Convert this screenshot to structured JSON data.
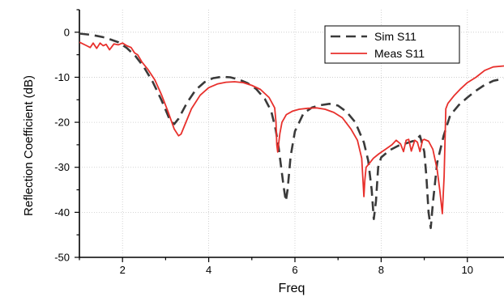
{
  "chart_data": {
    "type": "line",
    "xlabel": "Freq",
    "ylabel": "Reflection Coefficient (dB)",
    "xlim": [
      1,
      10.85
    ],
    "ylim": [
      -50,
      5
    ],
    "xticks": [
      2,
      4,
      6,
      8,
      10
    ],
    "yticks": [
      0,
      -10,
      -20,
      -30,
      -40,
      -50
    ],
    "grid": true,
    "legend_position": "top-right",
    "series": [
      {
        "name": "Sim S11",
        "color": "#3a3a3a",
        "style": "dashed",
        "x": [
          1.0,
          1.3,
          1.6,
          1.9,
          2.1,
          2.3,
          2.5,
          2.7,
          2.9,
          3.1,
          3.2,
          3.3,
          3.5,
          3.7,
          3.9,
          4.1,
          4.3,
          4.5,
          4.7,
          4.9,
          5.1,
          5.3,
          5.45,
          5.55,
          5.62,
          5.68,
          5.74,
          5.79,
          5.83,
          5.9,
          6.0,
          6.2,
          6.4,
          6.6,
          6.8,
          7.0,
          7.2,
          7.4,
          7.6,
          7.7,
          7.78,
          7.83,
          7.88,
          7.93,
          8.0,
          8.2,
          8.4,
          8.6,
          8.8,
          8.9,
          9.0,
          9.05,
          9.1,
          9.15,
          9.2,
          9.3,
          9.45,
          9.6,
          9.8,
          10.0,
          10.2,
          10.4,
          10.6,
          10.85
        ],
        "y": [
          -0.3,
          -0.6,
          -1.2,
          -2.2,
          -3.5,
          -5.3,
          -7.8,
          -11.0,
          -15.0,
          -19.5,
          -20.4,
          -19.2,
          -15.6,
          -12.8,
          -11.1,
          -10.2,
          -9.9,
          -10.0,
          -10.5,
          -11.3,
          -12.6,
          -14.8,
          -17.5,
          -21.5,
          -25.5,
          -30.0,
          -34.5,
          -37.5,
          -35.0,
          -27.5,
          -22.0,
          -18.0,
          -16.7,
          -16.2,
          -15.9,
          -16.3,
          -17.7,
          -20.0,
          -24.5,
          -28.5,
          -35.0,
          -41.5,
          -37.5,
          -30.0,
          -27.8,
          -26.2,
          -25.2,
          -24.6,
          -24.0,
          -23.0,
          -26.5,
          -32.0,
          -40.0,
          -43.5,
          -38.0,
          -29.0,
          -23.0,
          -18.5,
          -16.2,
          -14.5,
          -13.0,
          -11.7,
          -10.8,
          -10.3
        ]
      },
      {
        "name": "Meas S11",
        "color": "#e8302c",
        "style": "solid",
        "x": [
          1.0,
          1.15,
          1.25,
          1.32,
          1.4,
          1.48,
          1.55,
          1.62,
          1.7,
          1.8,
          1.9,
          2.0,
          2.1,
          2.2,
          2.28,
          2.35,
          2.45,
          2.6,
          2.75,
          2.9,
          3.05,
          3.2,
          3.3,
          3.36,
          3.45,
          3.6,
          3.8,
          4.0,
          4.2,
          4.4,
          4.6,
          4.8,
          5.0,
          5.2,
          5.4,
          5.53,
          5.56,
          5.58,
          5.6,
          5.65,
          5.7,
          5.8,
          5.95,
          6.1,
          6.3,
          6.5,
          6.7,
          6.9,
          7.1,
          7.3,
          7.45,
          7.55,
          7.6,
          7.62,
          7.65,
          7.72,
          7.82,
          7.95,
          8.1,
          8.25,
          8.35,
          8.45,
          8.52,
          8.58,
          8.64,
          8.7,
          8.78,
          8.84,
          8.9,
          8.96,
          9.0,
          9.1,
          9.2,
          9.3,
          9.36,
          9.42,
          9.46,
          9.5,
          9.55,
          9.7,
          9.85,
          10.0,
          10.2,
          10.4,
          10.6,
          10.85
        ],
        "y": [
          -2.2,
          -2.9,
          -3.4,
          -2.4,
          -3.6,
          -2.4,
          -3.0,
          -2.7,
          -3.9,
          -2.6,
          -2.8,
          -2.4,
          -3.0,
          -3.4,
          -4.6,
          -5.0,
          -6.6,
          -8.4,
          -10.6,
          -13.8,
          -17.5,
          -21.5,
          -23.0,
          -22.6,
          -20.5,
          -17.0,
          -14.0,
          -12.3,
          -11.5,
          -11.1,
          -11.0,
          -11.2,
          -11.8,
          -12.7,
          -14.5,
          -16.8,
          -20.0,
          -25.0,
          -26.6,
          -22.5,
          -20.0,
          -18.3,
          -17.5,
          -17.1,
          -16.9,
          -16.8,
          -17.1,
          -17.8,
          -19.0,
          -21.5,
          -24.0,
          -28.0,
          -36.5,
          -33.0,
          -30.0,
          -29.2,
          -28.0,
          -27.0,
          -26.0,
          -25.0,
          -24.0,
          -24.8,
          -26.5,
          -24.0,
          -23.8,
          -26.4,
          -24.0,
          -24.4,
          -26.5,
          -24.0,
          -23.8,
          -24.2,
          -26.0,
          -30.5,
          -35.0,
          -40.3,
          -32.0,
          -17.0,
          -15.8,
          -14.0,
          -12.5,
          -11.2,
          -10.0,
          -8.5,
          -7.7,
          -7.5
        ]
      }
    ]
  }
}
